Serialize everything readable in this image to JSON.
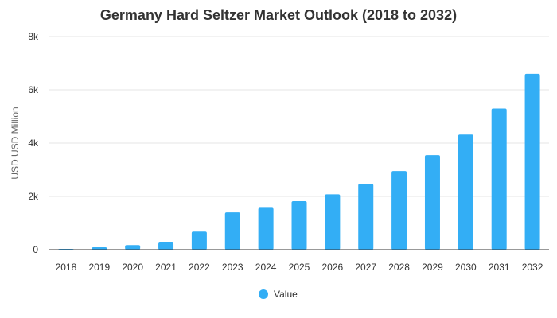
{
  "chart_data": {
    "type": "bar",
    "title": "Germany Hard Seltzer Market Outlook (2018 to 2032)",
    "xlabel": "",
    "ylabel": "USD USD Million",
    "categories": [
      "2018",
      "2019",
      "2020",
      "2021",
      "2022",
      "2023",
      "2024",
      "2025",
      "2026",
      "2027",
      "2028",
      "2029",
      "2030",
      "2031",
      "2032"
    ],
    "series": [
      {
        "name": "Value",
        "values": [
          30,
          90,
          170,
          270,
          680,
          1400,
          1570,
          1820,
          2080,
          2470,
          2950,
          3550,
          4320,
          5300,
          6600
        ]
      }
    ],
    "ylim": [
      0,
      8000
    ],
    "yticks": [
      {
        "value": 0,
        "label": "0"
      },
      {
        "value": 2000,
        "label": "2k"
      },
      {
        "value": 4000,
        "label": "4k"
      },
      {
        "value": 6000,
        "label": "6k"
      },
      {
        "value": 8000,
        "label": "8k"
      }
    ],
    "grid": true,
    "legend_position": "bottom",
    "colors": {
      "bar": "#33aef5",
      "grid": "#e6e6e6",
      "axis": "#333333"
    }
  }
}
